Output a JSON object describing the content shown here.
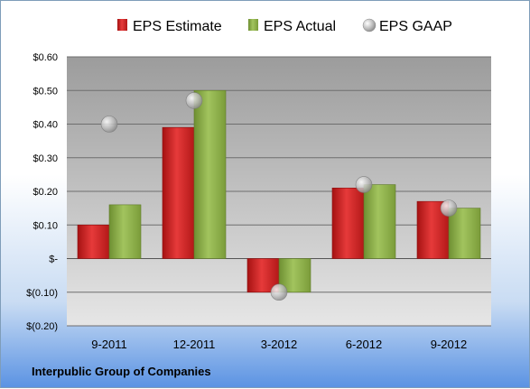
{
  "colors": {
    "estimate": "#d42a2a",
    "actual": "#8db04a",
    "gaap": "#b9b9b9",
    "plot_top": "#9c9c9c",
    "plot_bottom": "#e6e6e6"
  },
  "chart_data": {
    "type": "bar",
    "categories": [
      "9-2011",
      "12-2011",
      "3-2012",
      "6-2012",
      "9-2012"
    ],
    "series": [
      {
        "name": "EPS Estimate",
        "type": "bar",
        "values": [
          0.1,
          0.39,
          -0.1,
          0.21,
          0.17
        ]
      },
      {
        "name": "EPS Actual",
        "type": "bar",
        "values": [
          0.16,
          0.5,
          -0.1,
          0.22,
          0.15
        ]
      },
      {
        "name": "EPS GAAP",
        "type": "scatter",
        "values": [
          0.4,
          0.47,
          -0.1,
          0.22,
          0.15
        ]
      }
    ],
    "ylim": [
      -0.2,
      0.6
    ],
    "yticks": [
      0.6,
      0.5,
      0.4,
      0.3,
      0.2,
      0.1,
      0.0,
      -0.1,
      -0.2
    ],
    "ytick_labels": [
      "$0.60",
      "$0.50",
      "$0.40",
      "$0.30",
      "$0.20",
      "$0.10",
      "$-",
      "$(0.10)",
      "$(0.20)"
    ],
    "grid": true,
    "legend": "top",
    "footer_label": "Interpublic Group of Companies"
  }
}
